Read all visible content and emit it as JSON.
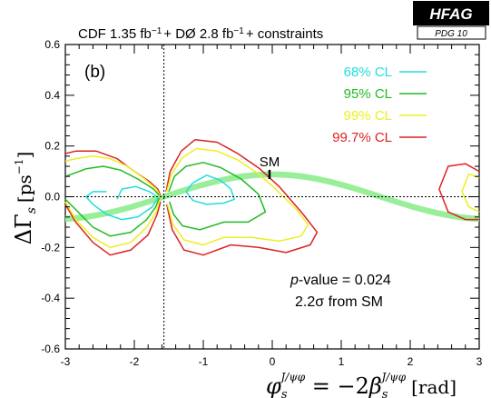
{
  "chart_data": {
    "type": "contour",
    "panel_label": "(b)",
    "title": "CDF  1.35 fb⁻¹ + DØ  2.8 fb⁻¹ + constraints",
    "title_parts": [
      "CDF  1.35 fb",
      "−1",
      "+ DØ  2.8 fb",
      "−1",
      "+ constraints"
    ],
    "badge": {
      "main": "HFAG",
      "sub": "PDG 10"
    },
    "xlabel": "φs(J/ψφ) = −2βs(J/ψφ) [rad]",
    "xlabel_parts": {
      "phi": "φ",
      "sub": "s",
      "sup": "J/ψφ",
      "eq": " = −2",
      "beta": "β",
      "unit": "[rad]"
    },
    "ylabel": "ΔΓs [ps⁻¹]",
    "ylabel_parts": {
      "delta": "ΔΓ",
      "sub": "s",
      "unit": "[ps",
      "exp": "−1",
      "close": "]"
    },
    "xlim": [
      -3,
      3
    ],
    "ylim": [
      -0.6,
      0.6
    ],
    "xticks": [
      "-3",
      "-2",
      "-1",
      "0",
      "1",
      "2",
      "3"
    ],
    "xtick_values": [
      -3,
      -2,
      -1,
      0,
      1,
      2,
      3
    ],
    "yticks": [
      "-0.6",
      "-0.4",
      "-0.2",
      "0.0",
      "0.2",
      "0.4",
      "0.6"
    ],
    "ytick_values": [
      -0.6,
      -0.4,
      -0.2,
      0.0,
      0.2,
      0.4,
      0.6
    ],
    "vertical_dashed_line_x": -1.5708,
    "horizontal_dashed_line_y": 0.0,
    "legend": [
      {
        "label": "68% CL",
        "color": "#22dddd"
      },
      {
        "label": "95% CL",
        "color": "#22bb22"
      },
      {
        "label": "99% CL",
        "color": "#eeee22"
      },
      {
        "label": "99.7% CL",
        "color": "#dd2222"
      }
    ],
    "sm_point": {
      "label": "SM",
      "x": -0.04,
      "y": 0.088
    },
    "annotation_lines": [
      "p-value = 0.024",
      "2.2σ   from SM"
    ],
    "annotation_parts": {
      "p": "p",
      "rest1": "-value = 0.024",
      "line2": "2.2σ   from SM"
    },
    "band": {
      "color": "#99ee99",
      "description": "Delta Gamma_s = 2|Gamma12| cos(phi_s)",
      "amplitude": 0.088,
      "half_width": 0.012
    },
    "contours": [
      {
        "level": "99.7% CL",
        "color": "#dd2222",
        "paths": [
          [
            [
              -1.62,
              0.005
            ],
            [
              -1.66,
              0.03
            ],
            [
              -1.78,
              0.06
            ],
            [
              -2.0,
              0.1
            ],
            [
              -2.25,
              0.15
            ],
            [
              -2.55,
              0.18
            ],
            [
              -2.85,
              0.18
            ],
            [
              -3.0,
              0.17
            ]
          ],
          [
            [
              -3.0,
              -0.03
            ],
            [
              -2.85,
              -0.1
            ],
            [
              -2.6,
              -0.18
            ],
            [
              -2.35,
              -0.23
            ],
            [
              -2.05,
              -0.21
            ],
            [
              -1.8,
              -0.15
            ],
            [
              -1.67,
              -0.07
            ],
            [
              -1.62,
              -0.02
            ]
          ],
          [
            [
              -1.54,
              0.02
            ],
            [
              -1.48,
              0.1
            ],
            [
              -1.32,
              0.18
            ],
            [
              -1.12,
              0.225
            ],
            [
              -0.8,
              0.215
            ],
            [
              -0.5,
              0.17
            ],
            [
              -0.18,
              0.11
            ],
            [
              0.1,
              0.04
            ],
            [
              0.45,
              -0.07
            ],
            [
              0.65,
              -0.14
            ],
            [
              0.55,
              -0.19
            ],
            [
              0.2,
              -0.22
            ],
            [
              -0.2,
              -0.2
            ],
            [
              -0.6,
              -0.19
            ],
            [
              -1.0,
              -0.23
            ],
            [
              -1.28,
              -0.21
            ],
            [
              -1.45,
              -0.13
            ],
            [
              -1.53,
              -0.03
            ]
          ],
          [
            [
              3.0,
              0.1
            ],
            [
              2.8,
              0.13
            ],
            [
              2.55,
              0.12
            ],
            [
              2.42,
              0.03
            ],
            [
              2.55,
              -0.06
            ],
            [
              2.8,
              -0.09
            ],
            [
              3.0,
              -0.09
            ]
          ]
        ]
      },
      {
        "level": "99% CL",
        "color": "#eeee22",
        "paths": [
          [
            [
              -1.63,
              0.005
            ],
            [
              -1.68,
              0.03
            ],
            [
              -1.85,
              0.07
            ],
            [
              -2.1,
              0.12
            ],
            [
              -2.35,
              0.15
            ],
            [
              -2.6,
              0.16
            ],
            [
              -2.85,
              0.15
            ],
            [
              -3.0,
              0.14
            ]
          ],
          [
            [
              -3.0,
              -0.02
            ],
            [
              -2.85,
              -0.09
            ],
            [
              -2.6,
              -0.16
            ],
            [
              -2.35,
              -0.2
            ],
            [
              -2.05,
              -0.18
            ],
            [
              -1.82,
              -0.12
            ],
            [
              -1.68,
              -0.06
            ],
            [
              -1.63,
              -0.01
            ]
          ],
          [
            [
              -1.53,
              0.02
            ],
            [
              -1.46,
              0.09
            ],
            [
              -1.3,
              0.155
            ],
            [
              -1.1,
              0.19
            ],
            [
              -0.8,
              0.18
            ],
            [
              -0.5,
              0.145
            ],
            [
              -0.2,
              0.09
            ],
            [
              0.05,
              0.03
            ],
            [
              0.35,
              -0.05
            ],
            [
              0.52,
              -0.11
            ],
            [
              0.42,
              -0.155
            ],
            [
              0.1,
              -0.175
            ],
            [
              -0.3,
              -0.16
            ],
            [
              -0.7,
              -0.16
            ],
            [
              -1.0,
              -0.19
            ],
            [
              -1.28,
              -0.17
            ],
            [
              -1.44,
              -0.11
            ],
            [
              -1.52,
              -0.03
            ]
          ],
          [
            [
              3.0,
              0.075
            ],
            [
              2.85,
              0.09
            ],
            [
              2.75,
              0.02
            ],
            [
              2.85,
              -0.04
            ],
            [
              3.0,
              -0.06
            ]
          ]
        ]
      },
      {
        "level": "95% CL",
        "color": "#22bb22",
        "paths": [
          [
            [
              -1.64,
              0.005
            ],
            [
              -1.72,
              0.03
            ],
            [
              -1.95,
              0.07
            ],
            [
              -2.2,
              0.105
            ],
            [
              -2.45,
              0.12
            ],
            [
              -2.7,
              0.11
            ],
            [
              -2.9,
              0.09
            ],
            [
              -3.0,
              0.08
            ]
          ],
          [
            [
              -3.0,
              -0.01
            ],
            [
              -2.85,
              -0.05
            ],
            [
              -2.6,
              -0.12
            ],
            [
              -2.35,
              -0.155
            ],
            [
              -2.05,
              -0.14
            ],
            [
              -1.82,
              -0.09
            ],
            [
              -1.69,
              -0.04
            ],
            [
              -1.64,
              -0.005
            ]
          ],
          [
            [
              -1.5,
              0.02
            ],
            [
              -1.42,
              0.08
            ],
            [
              -1.25,
              0.12
            ],
            [
              -1.0,
              0.135
            ],
            [
              -0.75,
              0.115
            ],
            [
              -0.45,
              0.07
            ],
            [
              -0.2,
              0.01
            ],
            [
              -0.1,
              -0.06
            ],
            [
              -0.35,
              -0.1
            ],
            [
              -0.7,
              -0.1
            ],
            [
              -1.05,
              -0.13
            ],
            [
              -1.3,
              -0.115
            ],
            [
              -1.43,
              -0.07
            ],
            [
              -1.49,
              -0.02
            ]
          ]
        ]
      },
      {
        "level": "68% CL",
        "color": "#22dddd",
        "paths": [
          [
            [
              -1.67,
              0.0
            ],
            [
              -1.78,
              0.02
            ],
            [
              -1.98,
              0.04
            ],
            [
              -2.18,
              0.03
            ],
            [
              -2.25,
              -0.01
            ]
          ],
          [
            [
              -1.66,
              -0.005
            ],
            [
              -1.74,
              -0.04
            ],
            [
              -1.95,
              -0.08
            ],
            [
              -2.18,
              -0.09
            ],
            [
              -2.4,
              -0.07
            ],
            [
              -2.6,
              -0.03
            ],
            [
              -2.7,
              0.0
            ],
            [
              -2.6,
              0.02
            ],
            [
              -2.4,
              0.02
            ]
          ],
          [
            [
              -1.25,
              0.02
            ],
            [
              -1.15,
              0.055
            ],
            [
              -0.95,
              0.085
            ],
            [
              -0.75,
              0.065
            ],
            [
              -0.6,
              0.03
            ],
            [
              -0.55,
              -0.01
            ],
            [
              -0.7,
              -0.025
            ],
            [
              -0.95,
              -0.03
            ],
            [
              -1.15,
              -0.015
            ],
            [
              -1.25,
              0.02
            ]
          ]
        ]
      }
    ]
  }
}
